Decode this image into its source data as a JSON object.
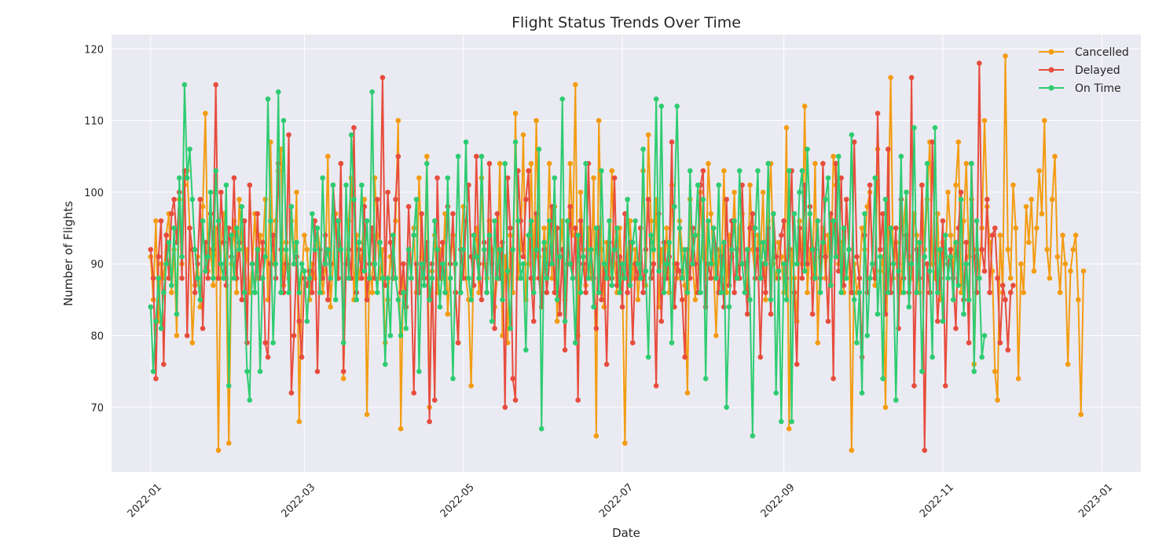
{
  "chart_data": {
    "type": "line",
    "title": "Flight Status Trends Over Time",
    "xlabel": "Date",
    "ylabel": "Number of Flights",
    "x_range": [
      "2021-12-17",
      "2023-01-16"
    ],
    "ylim": [
      61,
      122
    ],
    "x_ticks": [
      "2022-01",
      "2022-03",
      "2022-05",
      "2022-07",
      "2022-09",
      "2022-11",
      "2023-01"
    ],
    "y_ticks": [
      70,
      80,
      90,
      100,
      110,
      120
    ],
    "grid": true,
    "legend_position": "top-right",
    "background_color": "#eaeaf2",
    "series": [
      {
        "name": "Cancelled",
        "color": "#f39c12",
        "x_start": "2022-01-01",
        "x_step_days": 1,
        "values": [
          91,
          85,
          96,
          82,
          90,
          88,
          94,
          97,
          86,
          92,
          80,
          99,
          90,
          101,
          103,
          95,
          79,
          87,
          91,
          84,
          98,
          111,
          89,
          92,
          87,
          95,
          64,
          93,
          97,
          88,
          65,
          90,
          96,
          86,
          99,
          93,
          88,
          92,
          86,
          90,
          97,
          88,
          94,
          92,
          99,
          85,
          107,
          90,
          96,
          103,
          106,
          87,
          93,
          88,
          96,
          90,
          100,
          68,
          88,
          94,
          92,
          85,
          90,
          88,
          95,
          92,
          86,
          89,
          105,
          84,
          90,
          97,
          88,
          104,
          74,
          90,
          96,
          102,
          85,
          94,
          88,
          91,
          99,
          69,
          90,
          86,
          102,
          94,
          88,
          92,
          79,
          85,
          91,
          88,
          96,
          110,
          67,
          90,
          84,
          92,
          88,
          95,
          86,
          102,
          91,
          88,
          105,
          70,
          89,
          94,
          86,
          92,
          88,
          97,
          83,
          90,
          94,
          86,
          79,
          92,
          98,
          88,
          85,
          73,
          91,
          95,
          86,
          102,
          90,
          88,
          96,
          92,
          84,
          88,
          104,
          80,
          91,
          79,
          94,
          86,
          111,
          88,
          92,
          108,
          85,
          90,
          104,
          88,
          110,
          91,
          86,
          95,
          90,
          104,
          88,
          98,
          82,
          91,
          96,
          85,
          90,
          104,
          94,
          115,
          80,
          100,
          92,
          87,
          95,
          88,
          102,
          66,
          110,
          92,
          84,
          93,
          88,
          103,
          90,
          86,
          95,
          88,
          65,
          91,
          96,
          88,
          92,
          85,
          90,
          103,
          87,
          108,
          96,
          90,
          99,
          84,
          92,
          88,
          95,
          86,
          101,
          90,
          88,
          96,
          92,
          87,
          72,
          99,
          90,
          85,
          94,
          100,
          91,
          88,
          104,
          97,
          90,
          80,
          92,
          88,
          103,
          86,
          94,
          91,
          100,
          88,
          95,
          97,
          90,
          86,
          101,
          92,
          88,
          94,
          91,
          100,
          85,
          96,
          104,
          90,
          88,
          93,
          91,
          86,
          109,
          67,
          92,
          88,
          82,
          96,
          90,
          112,
          86,
          92,
          88,
          104,
          79,
          91,
          95,
          88,
          94,
          87,
          105,
          101,
          90,
          93,
          86,
          99,
          92,
          64,
          90,
          86,
          88,
          95,
          92,
          98,
          100,
          90,
          87,
          106,
          89,
          91,
          70,
          95,
          116,
          88,
          93,
          90,
          86,
          96,
          100,
          91,
          88,
          97,
          94,
          86,
          101,
          92,
          99,
          107,
          90,
          88,
          97,
          85,
          93,
          91,
          100,
          94,
          88,
          101,
          107,
          86,
          96,
          104,
          91,
          99,
          76,
          92,
          88,
          95,
          110,
          98,
          93,
          89,
          75,
          71,
          94,
          86,
          119,
          92,
          88,
          101,
          95,
          74,
          90,
          86,
          98,
          93,
          99,
          89,
          95,
          103,
          97,
          110,
          92,
          88,
          99,
          105,
          91,
          86,
          94,
          90,
          76,
          89,
          92,
          94,
          85,
          69,
          89
        ]
      },
      {
        "name": "Delayed",
        "color": "#e74c3c",
        "x_start": "2022-01-01",
        "x_step_days": 1,
        "values": [
          92,
          88,
          74,
          91,
          96,
          76,
          94,
          88,
          97,
          99,
          93,
          100,
          88,
          103,
          80,
          95,
          92,
          86,
          90,
          99,
          81,
          93,
          88,
          97,
          92,
          115,
          88,
          100,
          93,
          87,
          95,
          91,
          102,
          88,
          93,
          85,
          96,
          79,
          101,
          90,
          86,
          97,
          88,
          93,
          79,
          77,
          90,
          94,
          88,
          104,
          92,
          86,
          90,
          108,
          72,
          80,
          91,
          82,
          77,
          88,
          87,
          89,
          86,
          96,
          75,
          92,
          88,
          94,
          85,
          90,
          101,
          96,
          88,
          104,
          75,
          90,
          92,
          88,
          109,
          86,
          92,
          88,
          98,
          85,
          90,
          95,
          88,
          99,
          93,
          116,
          87,
          100,
          93,
          88,
          99,
          105,
          86,
          90,
          84,
          98,
          88,
          72,
          90,
          86,
          97,
          88,
          93,
          68,
          90,
          71,
          102,
          88,
          93,
          86,
          98,
          90,
          97,
          86,
          79,
          92,
          88,
          96,
          101,
          91,
          87,
          105,
          90,
          85,
          93,
          86,
          104,
          90,
          81,
          97,
          88,
          93,
          70,
          102,
          95,
          74,
          71,
          103,
          96,
          91,
          99,
          103,
          88,
          82,
          97,
          88,
          84,
          92,
          86,
          90,
          98,
          86,
          95,
          83,
          92,
          78,
          90,
          98,
          88,
          95,
          71,
          96,
          90,
          86,
          104,
          92,
          88,
          81,
          95,
          85,
          90,
          76,
          93,
          88,
          102,
          87,
          91,
          84,
          97,
          86,
          93,
          79,
          90,
          88,
          95,
          86,
          92,
          99,
          88,
          90,
          73,
          97,
          82,
          93,
          88,
          91,
          107,
          84,
          90,
          89,
          85,
          77,
          92,
          88,
          95,
          90,
          86,
          101,
          103,
          84,
          90,
          88,
          95,
          92,
          86,
          91,
          84,
          99,
          87,
          96,
          86,
          92,
          88,
          101,
          90,
          83,
          95,
          97,
          88,
          92,
          77,
          90,
          86,
          95,
          83,
          97,
          91,
          88,
          94,
          96,
          88,
          92,
          103,
          86,
          76,
          95,
          88,
          101,
          90,
          98,
          83,
          92,
          96,
          88,
          104,
          91,
          82,
          97,
          74,
          104,
          89,
          102,
          87,
          99,
          92,
          86,
          107,
          91,
          88,
          77,
          94,
          86,
          101,
          90,
          88,
          111,
          92,
          97,
          83,
          106,
          86,
          90,
          95,
          81,
          99,
          88,
          94,
          86,
          116,
          73,
          92,
          88,
          101,
          64,
          90,
          86,
          107,
          92,
          82,
          88,
          96,
          73,
          90,
          92,
          88,
          81,
          95,
          100,
          85,
          93,
          79,
          104,
          91,
          86,
          118,
          92,
          89,
          99,
          86,
          94,
          95,
          88,
          79,
          87,
          85,
          78,
          86,
          87
        ]
      },
      {
        "name": "On Time",
        "color": "#2ecc71",
        "x_start": "2022-01-01",
        "x_step_days": 1,
        "values": [
          84,
          75,
          82,
          88,
          81,
          86,
          90,
          93,
          87,
          95,
          83,
          102,
          91,
          115,
          102,
          106,
          99,
          92,
          88,
          85,
          96,
          89,
          91,
          100,
          88,
          103,
          96,
          90,
          88,
          101,
          73,
          94,
          88,
          95,
          92,
          98,
          86,
          75,
          71,
          90,
          86,
          92,
          75,
          88,
          91,
          113,
          96,
          79,
          90,
          114,
          86,
          110,
          92,
          86,
          98,
          90,
          93,
          86,
          90,
          89,
          82,
          88,
          97,
          92,
          95,
          86,
          102,
          90,
          92,
          88,
          101,
          85,
          96,
          92,
          79,
          101,
          88,
          108,
          99,
          85,
          93,
          101,
          89,
          96,
          88,
          114,
          90,
          86,
          93,
          88,
          76,
          88,
          80,
          94,
          88,
          85,
          80,
          86,
          81,
          92,
          88,
          94,
          99,
          75,
          90,
          87,
          104,
          85,
          88,
          96,
          92,
          84,
          90,
          86,
          102,
          88,
          74,
          90,
          105,
          86,
          92,
          107,
          88,
          85,
          94,
          91,
          88,
          105,
          92,
          86,
          94,
          82,
          96,
          88,
          92,
          85,
          104,
          89,
          81,
          92,
          107,
          96,
          88,
          90,
          78,
          94,
          96,
          86,
          92,
          106,
          67,
          93,
          88,
          96,
          90,
          102,
          85,
          91,
          113,
          82,
          96,
          90,
          88,
          79,
          94,
          86,
          91,
          104,
          88,
          92,
          84,
          95,
          86,
          103,
          90,
          88,
          96,
          87,
          92,
          95,
          86,
          90,
          88,
          99,
          87,
          93,
          96,
          90,
          88,
          106,
          89,
          77,
          94,
          92,
          113,
          89,
          112,
          86,
          90,
          93,
          79,
          98,
          112,
          95,
          88,
          92,
          86,
          103,
          90,
          94,
          101,
          86,
          99,
          74,
          96,
          90,
          95,
          88,
          101,
          86,
          93,
          70,
          84,
          92,
          96,
          88,
          103,
          90,
          86,
          92,
          85,
          66,
          95,
          103,
          88,
          93,
          90,
          104,
          85,
          97,
          72,
          89,
          68,
          90,
          85,
          103,
          68,
          97,
          90,
          100,
          103,
          89,
          106,
          97,
          92,
          88,
          96,
          86,
          93,
          99,
          102,
          87,
          96,
          91,
          105,
          86,
          95,
          88,
          92,
          108,
          85,
          79,
          86,
          72,
          97,
          80,
          88,
          90,
          102,
          83,
          91,
          74,
          99,
          86,
          95,
          90,
          71,
          89,
          105,
          86,
          100,
          84,
          90,
          109,
          86,
          93,
          75,
          91,
          104,
          89,
          77,
          109,
          86,
          92,
          82,
          94,
          88,
          91,
          85,
          93,
          87,
          99,
          83,
          90,
          85,
          104,
          75,
          96,
          88,
          77,
          80
        ]
      }
    ]
  }
}
